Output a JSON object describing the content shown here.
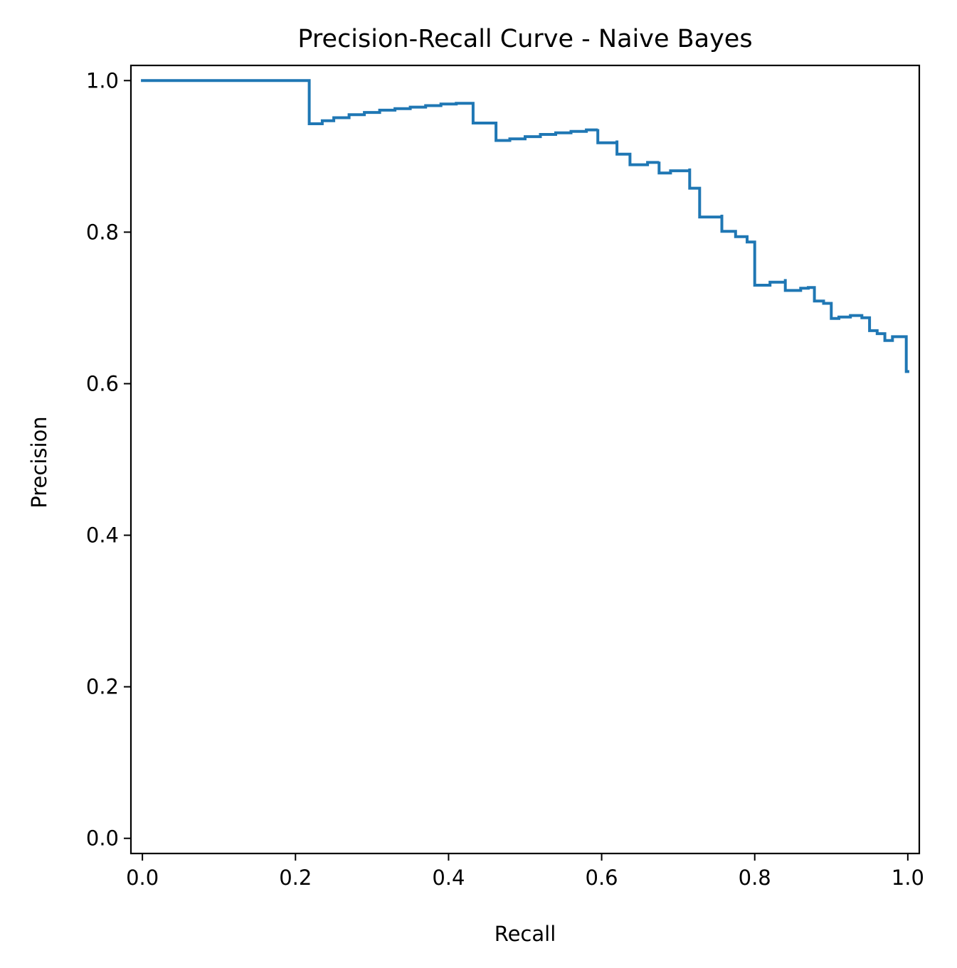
{
  "chart_data": {
    "type": "line",
    "title": "Precision-Recall Curve - Naive Bayes",
    "xlabel": "Recall",
    "ylabel": "Precision",
    "xlim": [
      -0.015,
      1.015
    ],
    "ylim": [
      -0.02,
      1.02
    ],
    "xticks": [
      "0.0",
      "0.2",
      "0.4",
      "0.6",
      "0.8",
      "1.0"
    ],
    "yticks": [
      "0.0",
      "0.2",
      "0.4",
      "0.6",
      "0.8",
      "1.0"
    ],
    "grid": false,
    "line_color": "#1f77b4",
    "series": [
      {
        "drawstyle": "steps-post",
        "x": [
          0.0,
          0.218,
          0.218,
          0.235,
          0.25,
          0.27,
          0.29,
          0.31,
          0.33,
          0.35,
          0.37,
          0.39,
          0.41,
          0.432,
          0.432,
          0.462,
          0.462,
          0.48,
          0.5,
          0.52,
          0.54,
          0.56,
          0.58,
          0.595,
          0.595,
          0.62,
          0.62,
          0.637,
          0.637,
          0.66,
          0.675,
          0.675,
          0.69,
          0.715,
          0.715,
          0.728,
          0.728,
          0.757,
          0.757,
          0.775,
          0.775,
          0.79,
          0.79,
          0.8,
          0.8,
          0.82,
          0.84,
          0.84,
          0.86,
          0.87,
          0.878,
          0.878,
          0.89,
          0.9,
          0.9,
          0.91,
          0.925,
          0.94,
          0.94,
          0.95,
          0.95,
          0.96,
          0.97,
          0.97,
          0.98,
          0.98,
          0.998,
          0.998,
          1.0
        ],
        "y": [
          1.0,
          1.0,
          0.943,
          0.947,
          0.951,
          0.955,
          0.958,
          0.961,
          0.963,
          0.965,
          0.967,
          0.969,
          0.97,
          0.97,
          0.944,
          0.944,
          0.921,
          0.923,
          0.926,
          0.929,
          0.931,
          0.933,
          0.935,
          0.936,
          0.918,
          0.921,
          0.903,
          0.903,
          0.889,
          0.892,
          0.893,
          0.878,
          0.881,
          0.884,
          0.858,
          0.858,
          0.82,
          0.823,
          0.801,
          0.794,
          0.794,
          0.787,
          0.787,
          0.787,
          0.73,
          0.734,
          0.738,
          0.723,
          0.726,
          0.727,
          0.722,
          0.709,
          0.706,
          0.705,
          0.686,
          0.688,
          0.69,
          0.687,
          0.687,
          0.67,
          0.67,
          0.666,
          0.664,
          0.657,
          0.66,
          0.662,
          0.662,
          0.616,
          0.616
        ]
      }
    ]
  }
}
